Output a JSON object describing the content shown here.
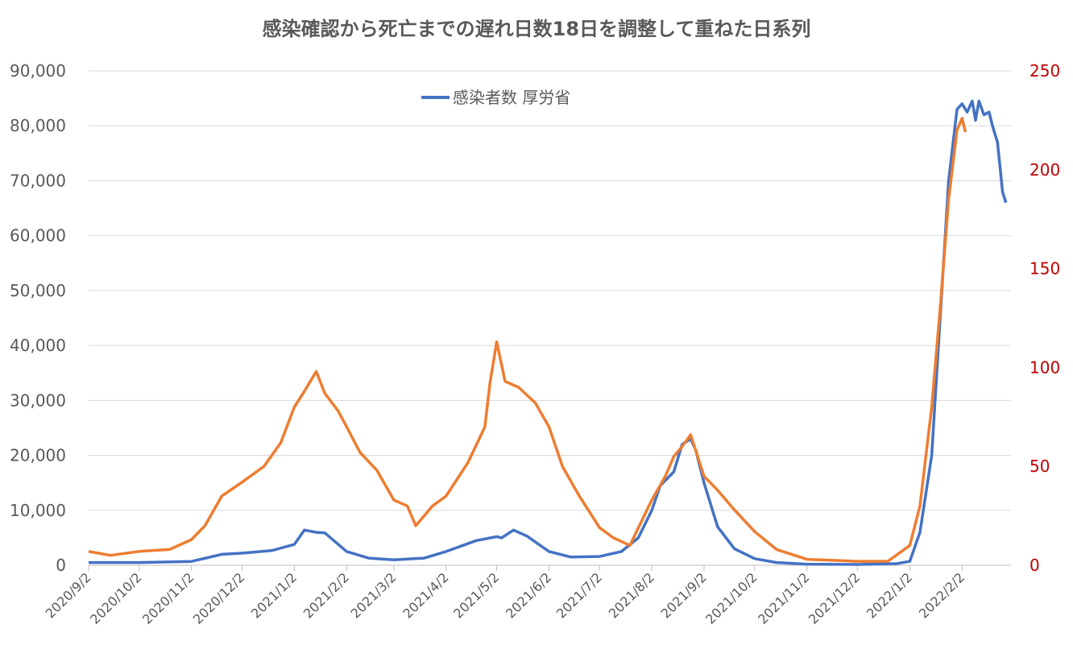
{
  "chart_data": {
    "type": "line",
    "title": "感染確認から死亡までの遅れ日数18日を調整して重ねた日系列",
    "xlabel": "",
    "ylabel": "",
    "x_start": "2020/9/2",
    "x_end": "2022/3/3",
    "x_ticks": [
      "2020/9/2",
      "2020/10/2",
      "2020/11/2",
      "2020/12/2",
      "2021/1/2",
      "2021/2/2",
      "2021/3/2",
      "2021/4/2",
      "2021/5/2",
      "2021/6/2",
      "2021/7/2",
      "2021/8/2",
      "2021/9/2",
      "2021/10/2",
      "2021/11/2",
      "2021/12/2",
      "2022/1/2",
      "2022/2/2"
    ],
    "y_left": {
      "range": [
        0,
        90000
      ],
      "ticks": [
        "0",
        "10,000",
        "20,000",
        "30,000",
        "40,000",
        "50,000",
        "60,000",
        "70,000",
        "80,000",
        "90,000"
      ],
      "values": [
        0,
        10000,
        20000,
        30000,
        40000,
        50000,
        60000,
        70000,
        80000,
        90000
      ]
    },
    "y_right": {
      "range": [
        0,
        250
      ],
      "ticks": [
        "0",
        "50",
        "100",
        "150",
        "200",
        "250"
      ],
      "values": [
        0,
        50,
        100,
        150,
        200,
        250
      ],
      "color": "#c00000"
    },
    "grid": true,
    "legend": {
      "placement": "top-center",
      "entries": [
        "感染者数 厚労省"
      ]
    },
    "series": [
      {
        "name": "感染者数 厚労省",
        "axis": "left",
        "color": "#4472c4",
        "points": [
          [
            "2020/9/2",
            500
          ],
          [
            "2020/10/2",
            500
          ],
          [
            "2020/11/2",
            700
          ],
          [
            "2020/11/20",
            2000
          ],
          [
            "2020/12/2",
            2200
          ],
          [
            "2020/12/20",
            2700
          ],
          [
            "2021/1/2",
            3800
          ],
          [
            "2021/1/8",
            6400
          ],
          [
            "2021/1/15",
            6000
          ],
          [
            "2021/1/20",
            5900
          ],
          [
            "2021/2/2",
            2500
          ],
          [
            "2021/2/15",
            1300
          ],
          [
            "2021/3/2",
            1000
          ],
          [
            "2021/3/20",
            1300
          ],
          [
            "2021/4/2",
            2500
          ],
          [
            "2021/4/20",
            4500
          ],
          [
            "2021/5/2",
            5200
          ],
          [
            "2021/5/5",
            5000
          ],
          [
            "2021/5/12",
            6400
          ],
          [
            "2021/5/20",
            5300
          ],
          [
            "2021/6/2",
            2500
          ],
          [
            "2021/6/15",
            1500
          ],
          [
            "2021/7/2",
            1600
          ],
          [
            "2021/7/15",
            2500
          ],
          [
            "2021/7/25",
            5000
          ],
          [
            "2021/8/2",
            10000
          ],
          [
            "2021/8/7",
            14500
          ],
          [
            "2021/8/15",
            17000
          ],
          [
            "2021/8/20",
            22000
          ],
          [
            "2021/8/25",
            23000
          ],
          [
            "2021/8/28",
            21000
          ],
          [
            "2021/9/2",
            15000
          ],
          [
            "2021/9/10",
            7000
          ],
          [
            "2021/9/20",
            3000
          ],
          [
            "2021/10/2",
            1200
          ],
          [
            "2021/10/15",
            500
          ],
          [
            "2021/11/2",
            200
          ],
          [
            "2021/12/2",
            150
          ],
          [
            "2021/12/25",
            300
          ],
          [
            "2022/1/2",
            700
          ],
          [
            "2022/1/8",
            6000
          ],
          [
            "2022/1/15",
            20000
          ],
          [
            "2022/1/20",
            45000
          ],
          [
            "2022/1/25",
            70000
          ],
          [
            "2022/1/30",
            83000
          ],
          [
            "2022/2/2",
            84000
          ],
          [
            "2022/2/5",
            82500
          ],
          [
            "2022/2/8",
            84500
          ],
          [
            "2022/2/10",
            81000
          ],
          [
            "2022/2/12",
            84500
          ],
          [
            "2022/2/15",
            82000
          ],
          [
            "2022/2/18",
            82500
          ],
          [
            "2022/2/20",
            80000
          ],
          [
            "2022/2/23",
            77000
          ],
          [
            "2022/2/26",
            68000
          ],
          [
            "2022/2/28",
            66000
          ]
        ]
      },
      {
        "name": "",
        "axis": "right",
        "color": "#ed7d31",
        "points": [
          [
            "2020/9/2",
            7
          ],
          [
            "2020/9/15",
            5
          ],
          [
            "2020/10/2",
            7
          ],
          [
            "2020/10/20",
            8
          ],
          [
            "2020/11/2",
            13
          ],
          [
            "2020/11/10",
            20
          ],
          [
            "2020/11/20",
            35
          ],
          [
            "2020/12/2",
            42
          ],
          [
            "2020/12/15",
            50
          ],
          [
            "2020/12/25",
            62
          ],
          [
            "2021/1/2",
            80
          ],
          [
            "2021/1/8",
            88
          ],
          [
            "2021/1/15",
            98
          ],
          [
            "2021/1/20",
            87
          ],
          [
            "2021/1/28",
            78
          ],
          [
            "2021/2/2",
            70
          ],
          [
            "2021/2/10",
            57
          ],
          [
            "2021/2/20",
            48
          ],
          [
            "2021/3/2",
            33
          ],
          [
            "2021/3/10",
            30
          ],
          [
            "2021/3/15",
            20
          ],
          [
            "2021/3/25",
            30
          ],
          [
            "2021/4/2",
            35
          ],
          [
            "2021/4/15",
            52
          ],
          [
            "2021/4/25",
            70
          ],
          [
            "2021/4/28",
            92
          ],
          [
            "2021/5/2",
            113
          ],
          [
            "2021/5/7",
            93
          ],
          [
            "2021/5/15",
            90
          ],
          [
            "2021/5/25",
            82
          ],
          [
            "2021/6/2",
            70
          ],
          [
            "2021/6/10",
            50
          ],
          [
            "2021/6/20",
            35
          ],
          [
            "2021/7/2",
            19
          ],
          [
            "2021/7/10",
            14
          ],
          [
            "2021/7/20",
            10
          ],
          [
            "2021/8/2",
            33
          ],
          [
            "2021/8/10",
            45
          ],
          [
            "2021/8/15",
            55
          ],
          [
            "2021/8/20",
            60
          ],
          [
            "2021/8/25",
            66
          ],
          [
            "2021/9/2",
            45
          ],
          [
            "2021/9/10",
            38
          ],
          [
            "2021/9/20",
            28
          ],
          [
            "2021/10/2",
            17
          ],
          [
            "2021/10/15",
            8
          ],
          [
            "2021/11/2",
            3
          ],
          [
            "2021/12/2",
            2
          ],
          [
            "2021/12/20",
            2
          ],
          [
            "2022/1/2",
            10
          ],
          [
            "2022/1/8",
            30
          ],
          [
            "2022/1/15",
            80
          ],
          [
            "2022/1/20",
            130
          ],
          [
            "2022/1/25",
            185
          ],
          [
            "2022/1/30",
            220
          ],
          [
            "2022/2/2",
            226
          ],
          [
            "2022/2/4",
            219
          ]
        ]
      }
    ]
  }
}
